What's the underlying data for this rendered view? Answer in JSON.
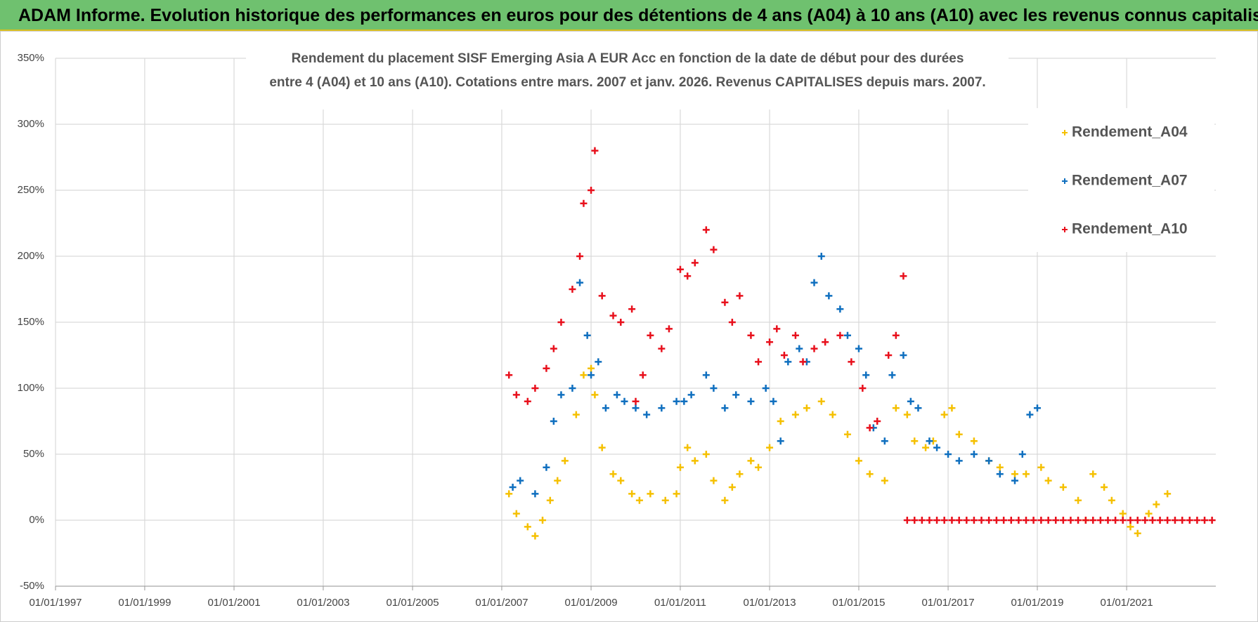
{
  "header": {
    "title": "ADAM Informe. Evolution historique des performances en euros pour des détentions de 4 ans (A04) à 10 ans (A10) avec les revenus connus capitalisés"
  },
  "chart_data": {
    "type": "scatter",
    "subtitle": [
      "Rendement du placement SISF Emerging Asia A EUR Acc en fonction de la date de début pour des durées",
      "entre 4 (A04) et 10 ans (A10).  Cotations entre mars. 2007 et janv. 2026.  Revenus CAPITALISES depuis mars. 2007."
    ],
    "xlim": [
      "1997-01-01",
      "2023-01-01"
    ],
    "xticks": [
      {
        "value": "1997-01-01",
        "label": "01/01/1997"
      },
      {
        "value": "1999-01-01",
        "label": "01/01/1999"
      },
      {
        "value": "2001-01-01",
        "label": "01/01/2001"
      },
      {
        "value": "2003-01-01",
        "label": "01/01/2003"
      },
      {
        "value": "2005-01-01",
        "label": "01/01/2005"
      },
      {
        "value": "2007-01-01",
        "label": "01/01/2007"
      },
      {
        "value": "2009-01-01",
        "label": "01/01/2009"
      },
      {
        "value": "2011-01-01",
        "label": "01/01/2011"
      },
      {
        "value": "2013-01-01",
        "label": "01/01/2013"
      },
      {
        "value": "2015-01-01",
        "label": "01/01/2015"
      },
      {
        "value": "2017-01-01",
        "label": "01/01/2017"
      },
      {
        "value": "2019-01-01",
        "label": "01/01/2019"
      },
      {
        "value": "2021-01-01",
        "label": "01/01/2021"
      }
    ],
    "ylim": [
      -50,
      350
    ],
    "yticks": [
      {
        "value": -50,
        "label": "-50%"
      },
      {
        "value": 0,
        "label": "0%"
      },
      {
        "value": 50,
        "label": "50%"
      },
      {
        "value": 100,
        "label": "100%"
      },
      {
        "value": 150,
        "label": "150%"
      },
      {
        "value": 200,
        "label": "200%"
      },
      {
        "value": 250,
        "label": "250%"
      },
      {
        "value": 300,
        "label": "300%"
      },
      {
        "value": 350,
        "label": "350%"
      }
    ],
    "grid": true,
    "legend": "upper right",
    "series": [
      {
        "name": "Rendement_A04",
        "color": "#f5c000",
        "x": [
          "2007-03-01",
          "2007-05-01",
          "2007-08-01",
          "2007-10-01",
          "2007-12-01",
          "2008-02-01",
          "2008-04-01",
          "2008-06-01",
          "2008-09-01",
          "2008-11-01",
          "2009-01-01",
          "2009-02-01",
          "2009-04-01",
          "2009-07-01",
          "2009-09-01",
          "2009-12-01",
          "2010-02-01",
          "2010-05-01",
          "2010-09-01",
          "2010-12-01",
          "2011-01-01",
          "2011-03-01",
          "2011-05-01",
          "2011-08-01",
          "2011-10-01",
          "2012-01-01",
          "2012-03-01",
          "2012-05-01",
          "2012-08-01",
          "2012-10-01",
          "2013-01-01",
          "2013-04-01",
          "2013-08-01",
          "2013-11-01",
          "2014-03-01",
          "2014-06-01",
          "2014-10-01",
          "2015-01-01",
          "2015-04-01",
          "2015-08-01",
          "2015-11-01",
          "2016-02-01",
          "2016-04-01",
          "2016-07-01",
          "2016-09-01",
          "2016-12-01",
          "2017-02-01",
          "2017-04-01",
          "2017-08-01",
          "2017-12-01",
          "2018-03-01",
          "2018-07-01",
          "2018-10-01",
          "2019-02-01",
          "2019-04-01",
          "2019-08-01",
          "2019-12-01",
          "2020-02-01",
          "2020-04-01",
          "2020-07-01",
          "2020-09-01",
          "2020-12-01",
          "2021-02-01",
          "2021-04-01",
          "2021-07-01",
          "2021-09-01",
          "2021-12-01"
        ],
        "values": [
          20,
          5,
          -5,
          -12,
          0,
          15,
          30,
          45,
          80,
          110,
          115,
          95,
          55,
          35,
          30,
          20,
          15,
          20,
          15,
          20,
          40,
          55,
          45,
          50,
          30,
          15,
          25,
          35,
          45,
          40,
          55,
          75,
          80,
          85,
          90,
          80,
          65,
          45,
          35,
          30,
          85,
          80,
          60,
          55,
          60,
          80,
          85,
          65,
          60,
          45,
          40,
          35,
          35,
          40,
          30,
          25,
          15,
          0,
          35,
          25,
          15,
          5,
          -5,
          -10,
          5,
          12,
          20
        ]
      },
      {
        "name": "Rendement_A07",
        "color": "#0f6fbf",
        "x": [
          "2007-04-01",
          "2007-06-01",
          "2007-10-01",
          "2008-01-01",
          "2008-03-01",
          "2008-05-01",
          "2008-08-01",
          "2008-10-01",
          "2008-12-01",
          "2009-01-01",
          "2009-03-01",
          "2009-05-01",
          "2009-08-01",
          "2009-10-01",
          "2010-01-01",
          "2010-04-01",
          "2010-08-01",
          "2010-12-01",
          "2011-02-01",
          "2011-04-01",
          "2011-08-01",
          "2011-10-01",
          "2012-01-01",
          "2012-04-01",
          "2012-08-01",
          "2012-12-01",
          "2013-02-01",
          "2013-04-01",
          "2013-06-01",
          "2013-09-01",
          "2013-11-01",
          "2014-01-01",
          "2014-03-01",
          "2014-05-01",
          "2014-08-01",
          "2014-10-01",
          "2015-01-01",
          "2015-03-01",
          "2015-05-01",
          "2015-08-01",
          "2015-10-01",
          "2016-01-01",
          "2016-03-01",
          "2016-05-01",
          "2016-08-01",
          "2016-10-01",
          "2017-01-01",
          "2017-04-01",
          "2017-08-01",
          "2017-12-01",
          "2018-03-01",
          "2018-07-01",
          "2018-09-01",
          "2018-11-01",
          "2019-01-01"
        ],
        "values": [
          25,
          30,
          20,
          40,
          75,
          95,
          100,
          180,
          140,
          110,
          120,
          85,
          95,
          90,
          85,
          80,
          85,
          90,
          90,
          95,
          110,
          100,
          85,
          95,
          90,
          100,
          90,
          60,
          120,
          130,
          120,
          180,
          200,
          170,
          160,
          140,
          130,
          110,
          70,
          60,
          110,
          125,
          90,
          85,
          60,
          55,
          50,
          45,
          50,
          45,
          35,
          30,
          50,
          80,
          85
        ]
      },
      {
        "name": "Rendement_A10",
        "color": "#e8101c",
        "x": [
          "2007-03-01",
          "2007-05-01",
          "2007-08-01",
          "2007-10-01",
          "2008-01-01",
          "2008-03-01",
          "2008-05-01",
          "2008-08-01",
          "2008-10-01",
          "2008-11-01",
          "2009-01-01",
          "2009-02-01",
          "2009-04-01",
          "2009-07-01",
          "2009-09-01",
          "2009-12-01",
          "2010-01-01",
          "2010-03-01",
          "2010-05-01",
          "2010-08-01",
          "2010-10-01",
          "2011-01-01",
          "2011-03-01",
          "2011-05-01",
          "2011-08-01",
          "2011-10-01",
          "2012-01-01",
          "2012-03-01",
          "2012-05-01",
          "2012-08-01",
          "2012-10-01",
          "2013-01-01",
          "2013-03-01",
          "2013-05-01",
          "2013-08-01",
          "2013-10-01",
          "2014-01-01",
          "2014-04-01",
          "2014-08-01",
          "2014-11-01",
          "2015-02-01",
          "2015-04-01",
          "2015-06-01",
          "2015-09-01",
          "2015-11-01",
          "2016-01-01",
          "2016-02-01",
          "2016-04-01",
          "2016-06-01",
          "2016-08-01",
          "2016-10-01",
          "2016-12-01",
          "2017-02-01",
          "2017-04-01",
          "2017-06-01",
          "2017-08-01",
          "2017-10-01",
          "2017-12-01",
          "2018-02-01",
          "2018-04-01",
          "2018-06-01",
          "2018-08-01",
          "2018-10-01",
          "2018-12-01",
          "2019-02-01",
          "2019-04-01",
          "2019-06-01",
          "2019-08-01",
          "2019-10-01",
          "2019-12-01",
          "2020-02-01",
          "2020-04-01",
          "2020-06-01",
          "2020-08-01",
          "2020-10-01",
          "2020-12-01",
          "2021-02-01",
          "2021-04-01",
          "2021-06-01",
          "2021-08-01",
          "2021-10-01",
          "2021-12-01",
          "2022-02-01",
          "2022-04-01",
          "2022-06-01",
          "2022-08-01",
          "2022-10-01",
          "2022-12-01"
        ],
        "values": [
          110,
          95,
          90,
          100,
          115,
          130,
          150,
          175,
          200,
          240,
          250,
          280,
          170,
          155,
          150,
          160,
          90,
          110,
          140,
          130,
          145,
          190,
          185,
          195,
          220,
          205,
          165,
          150,
          170,
          140,
          120,
          135,
          145,
          125,
          140,
          120,
          130,
          135,
          140,
          120,
          100,
          70,
          75,
          125,
          140,
          185,
          0,
          0,
          0,
          0,
          0,
          0,
          0,
          0,
          0,
          0,
          0,
          0,
          0,
          0,
          0,
          0,
          0,
          0,
          0,
          0,
          0,
          0,
          0,
          0,
          0,
          0,
          0,
          0,
          0,
          0,
          0,
          0,
          0,
          0,
          0,
          0,
          0,
          0,
          0,
          0,
          0,
          0
        ]
      }
    ]
  }
}
